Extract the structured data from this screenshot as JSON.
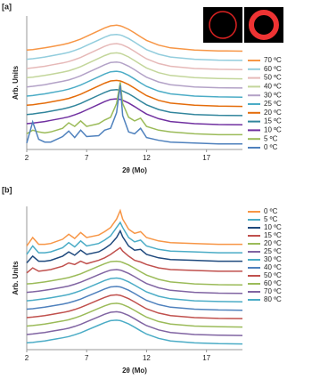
{
  "chart_data": [
    {
      "type": "line",
      "label": "[a]",
      "xlabel": "2θ (Mo)",
      "ylabel": "Arb. Units",
      "x": [
        2,
        2.5,
        3,
        3.5,
        4,
        5,
        5.5,
        6,
        6.5,
        7,
        8,
        8.5,
        9,
        9.5,
        9.8,
        10,
        10.5,
        11,
        11.5,
        12,
        13,
        14,
        16,
        18,
        20
      ],
      "xlim": [
        2,
        20
      ],
      "xticks": [
        2,
        7,
        12,
        17
      ],
      "ylim": [
        -0.5,
        14
      ],
      "series": [
        {
          "name": "70 ºC",
          "color": "#f79646",
          "values": [
            10.3,
            10.36,
            10.45,
            10.54,
            10.66,
            10.9,
            11.05,
            11.26,
            11.5,
            11.8,
            12.4,
            12.7,
            12.94,
            13,
            12.94,
            12.85,
            12.55,
            12.16,
            11.74,
            11.35,
            10.84,
            10.54,
            10.3,
            10.21,
            10.18
          ]
        },
        {
          "name": "60 ºC",
          "color": "#93cddd",
          "values": [
            9.3,
            9.36,
            9.45,
            9.54,
            9.66,
            9.9,
            10.05,
            10.26,
            10.5,
            10.8,
            11.4,
            11.7,
            11.94,
            12,
            11.94,
            11.85,
            11.55,
            11.16,
            10.74,
            10.35,
            9.84,
            9.54,
            9.3,
            9.21,
            9.18
          ]
        },
        {
          "name": "50 ºC",
          "color": "#e6b9b8",
          "values": [
            8.3,
            8.36,
            8.45,
            8.54,
            8.66,
            8.9,
            9.05,
            9.26,
            9.5,
            9.8,
            10.4,
            10.7,
            10.94,
            11,
            10.94,
            10.85,
            10.55,
            10.16,
            9.74,
            9.35,
            8.84,
            8.54,
            8.3,
            8.21,
            8.18
          ]
        },
        {
          "name": "40 ºC",
          "color": "#c3d69b",
          "values": [
            7.3,
            7.36,
            7.45,
            7.54,
            7.66,
            7.9,
            8.05,
            8.26,
            8.5,
            8.8,
            9.4,
            9.7,
            9.94,
            10,
            9.94,
            9.85,
            9.55,
            9.16,
            8.74,
            8.35,
            7.84,
            7.54,
            7.3,
            7.21,
            7.18
          ]
        },
        {
          "name": "30 ºC",
          "color": "#b3a2c7",
          "values": [
            6.3,
            6.36,
            6.45,
            6.54,
            6.66,
            6.9,
            7.05,
            7.26,
            7.5,
            7.8,
            8.4,
            8.7,
            8.94,
            9,
            8.94,
            8.85,
            8.55,
            8.16,
            7.74,
            7.35,
            6.84,
            6.54,
            6.3,
            6.21,
            6.18
          ]
        },
        {
          "name": "25 ºC",
          "color": "#4bacc6",
          "values": [
            5.3,
            5.36,
            5.45,
            5.54,
            5.66,
            5.9,
            6.05,
            6.26,
            6.5,
            6.8,
            7.4,
            7.7,
            7.94,
            8,
            7.94,
            7.85,
            7.55,
            7.16,
            6.74,
            6.35,
            5.84,
            5.54,
            5.3,
            5.21,
            5.18
          ]
        },
        {
          "name": "20 ºC",
          "color": "#e46c0a",
          "values": [
            4.3,
            4.36,
            4.45,
            4.54,
            4.66,
            4.9,
            5.05,
            5.26,
            5.5,
            5.8,
            6.4,
            6.7,
            6.94,
            7,
            6.94,
            6.85,
            6.55,
            6.16,
            5.74,
            5.35,
            4.84,
            4.54,
            4.3,
            4.21,
            4.18
          ]
        },
        {
          "name": "15 ºC",
          "color": "#31859c",
          "values": [
            3.3,
            3.36,
            3.45,
            3.54,
            3.66,
            3.9,
            4.05,
            4.26,
            4.5,
            4.8,
            5.4,
            5.7,
            5.94,
            6,
            5.94,
            5.85,
            5.55,
            5.16,
            4.74,
            4.35,
            3.84,
            3.54,
            3.3,
            3.21,
            3.18
          ]
        },
        {
          "name": "10 ºC",
          "color": "#7030a0",
          "values": [
            2.3,
            2.36,
            2.45,
            2.54,
            2.66,
            2.9,
            3.05,
            3.26,
            3.5,
            3.8,
            4.4,
            4.7,
            4.94,
            5,
            4.94,
            4.85,
            4.55,
            4.16,
            3.74,
            3.35,
            2.84,
            2.54,
            2.3,
            2.21,
            2.18
          ]
        },
        {
          "name": "5 ºC",
          "color": "#9bbb59",
          "values": [
            1.2,
            1.6,
            1.4,
            1.3,
            1.4,
            1.8,
            2.4,
            2,
            2.6,
            2,
            2.3,
            2.7,
            3,
            4.5,
            6.8,
            4.5,
            3,
            2.6,
            2.9,
            2,
            1.6,
            1.4,
            1.2,
            1.1,
            1.1
          ]
        },
        {
          "name": "0 ºC",
          "color": "#4f81bd",
          "values": [
            0.2,
            2.5,
            0.6,
            0.3,
            0.3,
            0.9,
            1.5,
            0.8,
            1.6,
            0.9,
            1,
            1.6,
            1.8,
            3.5,
            6.5,
            3.2,
            1.4,
            1.2,
            1.8,
            0.8,
            0.5,
            0.3,
            0.2,
            0.1,
            0.1
          ]
        }
      ]
    },
    {
      "type": "line",
      "label": "[b]",
      "xlabel": "2θ (Mo)",
      "ylabel": "Arb. Units",
      "x": [
        2,
        2.5,
        3,
        3.5,
        4,
        5,
        5.5,
        6,
        6.5,
        7,
        8,
        8.5,
        9,
        9.5,
        9.8,
        10,
        10.5,
        11,
        11.5,
        12,
        13,
        14,
        16,
        18,
        20
      ],
      "xlim": [
        2,
        20
      ],
      "xticks": [
        2,
        7,
        12,
        17
      ],
      "ylim": [
        -0.5,
        16.5
      ],
      "series": [
        {
          "name": "0 ºC",
          "color": "#f79646",
          "values": [
            11.8,
            12.8,
            12,
            12,
            12.1,
            12.6,
            13.2,
            12.7,
            13.4,
            12.8,
            13.1,
            13.5,
            14,
            15,
            16,
            15,
            13.8,
            13.3,
            13.5,
            12.8,
            12.4,
            12.2,
            12.1,
            12,
            12
          ]
        },
        {
          "name": "5 ºC",
          "color": "#4bacc6",
          "values": [
            10.8,
            11.8,
            11,
            11,
            11.1,
            11.6,
            12.2,
            11.7,
            12.4,
            11.8,
            12.1,
            12.5,
            13,
            14,
            14.6,
            14,
            12.8,
            12.3,
            12.5,
            11.8,
            11.4,
            11.2,
            11.1,
            11,
            11
          ]
        },
        {
          "name": "10 ºC",
          "color": "#1f497d",
          "values": [
            9.8,
            10.6,
            10,
            10,
            10.1,
            10.6,
            11.1,
            10.7,
            11.3,
            10.8,
            11.1,
            11.5,
            12,
            12.8,
            13.6,
            12.9,
            11.8,
            11.3,
            11.4,
            10.8,
            10.4,
            10.2,
            10.1,
            10,
            10
          ]
        },
        {
          "name": "15 ºC",
          "color": "#c0504d",
          "values": [
            8.6,
            9.2,
            8.8,
            8.9,
            9,
            9.4,
            9.8,
            9.6,
            10,
            9.7,
            10.1,
            10.4,
            10.8,
            11.3,
            11.6,
            11.2,
            10.6,
            10.1,
            9.9,
            9.6,
            9.2,
            9,
            8.9,
            8.8,
            8.8
          ]
        },
        {
          "name": "20 ºC",
          "color": "#9bbb59",
          "values": [
            7.3,
            7.36,
            7.45,
            7.54,
            7.66,
            7.9,
            8.05,
            8.26,
            8.5,
            8.8,
            9.4,
            9.7,
            9.94,
            10,
            9.94,
            9.85,
            9.55,
            9.16,
            8.74,
            8.35,
            7.84,
            7.54,
            7.3,
            7.21,
            7.18
          ]
        },
        {
          "name": "25 ºC",
          "color": "#8064a2",
          "values": [
            6.3,
            6.36,
            6.45,
            6.54,
            6.66,
            6.9,
            7.05,
            7.26,
            7.5,
            7.8,
            8.4,
            8.7,
            8.94,
            9,
            8.94,
            8.85,
            8.55,
            8.16,
            7.74,
            7.35,
            6.84,
            6.54,
            6.3,
            6.21,
            6.18
          ]
        },
        {
          "name": "30 ºC",
          "color": "#4bacc6",
          "values": [
            5.3,
            5.36,
            5.45,
            5.54,
            5.66,
            5.9,
            6.05,
            6.26,
            6.5,
            6.8,
            7.4,
            7.7,
            7.94,
            8,
            7.94,
            7.85,
            7.55,
            7.16,
            6.74,
            6.35,
            5.84,
            5.54,
            5.3,
            5.21,
            5.18
          ]
        },
        {
          "name": "40 ºC",
          "color": "#4f81bd",
          "values": [
            4.3,
            4.36,
            4.45,
            4.54,
            4.66,
            4.9,
            5.05,
            5.26,
            5.5,
            5.8,
            6.4,
            6.7,
            6.94,
            7,
            6.94,
            6.85,
            6.55,
            6.16,
            5.74,
            5.35,
            4.84,
            4.54,
            4.3,
            4.21,
            4.18
          ]
        },
        {
          "name": "50 ºC",
          "color": "#c0504d",
          "values": [
            3.3,
            3.36,
            3.45,
            3.54,
            3.66,
            3.9,
            4.05,
            4.26,
            4.5,
            4.8,
            5.4,
            5.7,
            5.94,
            6,
            5.94,
            5.85,
            5.55,
            5.16,
            4.74,
            4.35,
            3.84,
            3.54,
            3.3,
            3.21,
            3.18
          ]
        },
        {
          "name": "60 ºC",
          "color": "#9bbb59",
          "values": [
            2.3,
            2.36,
            2.45,
            2.54,
            2.66,
            2.9,
            3.05,
            3.26,
            3.5,
            3.8,
            4.4,
            4.7,
            4.94,
            5,
            4.94,
            4.85,
            4.55,
            4.16,
            3.74,
            3.35,
            2.84,
            2.54,
            2.3,
            2.21,
            2.18
          ]
        },
        {
          "name": "70 ºC",
          "color": "#8064a2",
          "values": [
            1.3,
            1.36,
            1.45,
            1.54,
            1.66,
            1.9,
            2.05,
            2.26,
            2.5,
            2.8,
            3.4,
            3.7,
            3.94,
            4,
            3.94,
            3.85,
            3.55,
            3.16,
            2.74,
            2.35,
            1.84,
            1.54,
            1.3,
            1.21,
            1.18
          ]
        },
        {
          "name": "80 ºC",
          "color": "#4bacc6",
          "values": [
            0.3,
            0.36,
            0.45,
            0.54,
            0.66,
            0.9,
            1.05,
            1.26,
            1.5,
            1.8,
            2.4,
            2.7,
            2.94,
            3,
            2.94,
            2.85,
            2.55,
            2.16,
            1.74,
            1.35,
            0.84,
            0.54,
            0.3,
            0.21,
            0.18
          ]
        }
      ]
    }
  ]
}
